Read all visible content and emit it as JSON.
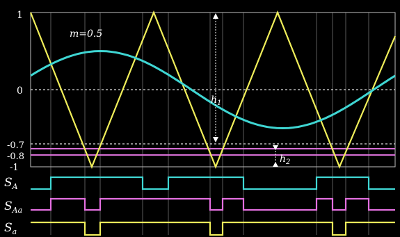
{
  "labels": {
    "m_eq": "m=0.5",
    "y_1": "1",
    "y_0": "0",
    "y_m07": "-0.7",
    "y_m08": "-0.8",
    "y_m1": "-1",
    "h1_main": "h",
    "h1_sub": "1",
    "h2_main": "h",
    "h2_sub": "2",
    "sA_main": "S",
    "sA_sub": "A",
    "sAa_main": "S",
    "sAa_sub": "Aa",
    "sa_main": "S",
    "sa_sub": "a"
  },
  "colors": {
    "background": "#000000",
    "frame": "#bfbfbf",
    "carrier": "#f0ee5a",
    "sine": "#3fd6d3",
    "level_lines": "#d86fd6",
    "signal_A": "#3fd6d3",
    "signal_Aa": "#e46fe0",
    "signal_a": "#f0ee5a",
    "text": "#ffffff"
  },
  "chart_data": {
    "type": "line",
    "modulation_index": 0.5,
    "ylim": [
      -1,
      1
    ],
    "y_ticks": [
      "1",
      "0",
      "-0.7",
      "-0.8",
      "-1"
    ],
    "carrier": {
      "shape": "triangle",
      "periods": 3
    },
    "reference": {
      "shape": "sine",
      "amplitude": 0.5
    },
    "thresholds": [
      -0.7,
      -0.8
    ],
    "switching_signals": [
      "S_A",
      "S_Aa",
      "S_a"
    ]
  }
}
